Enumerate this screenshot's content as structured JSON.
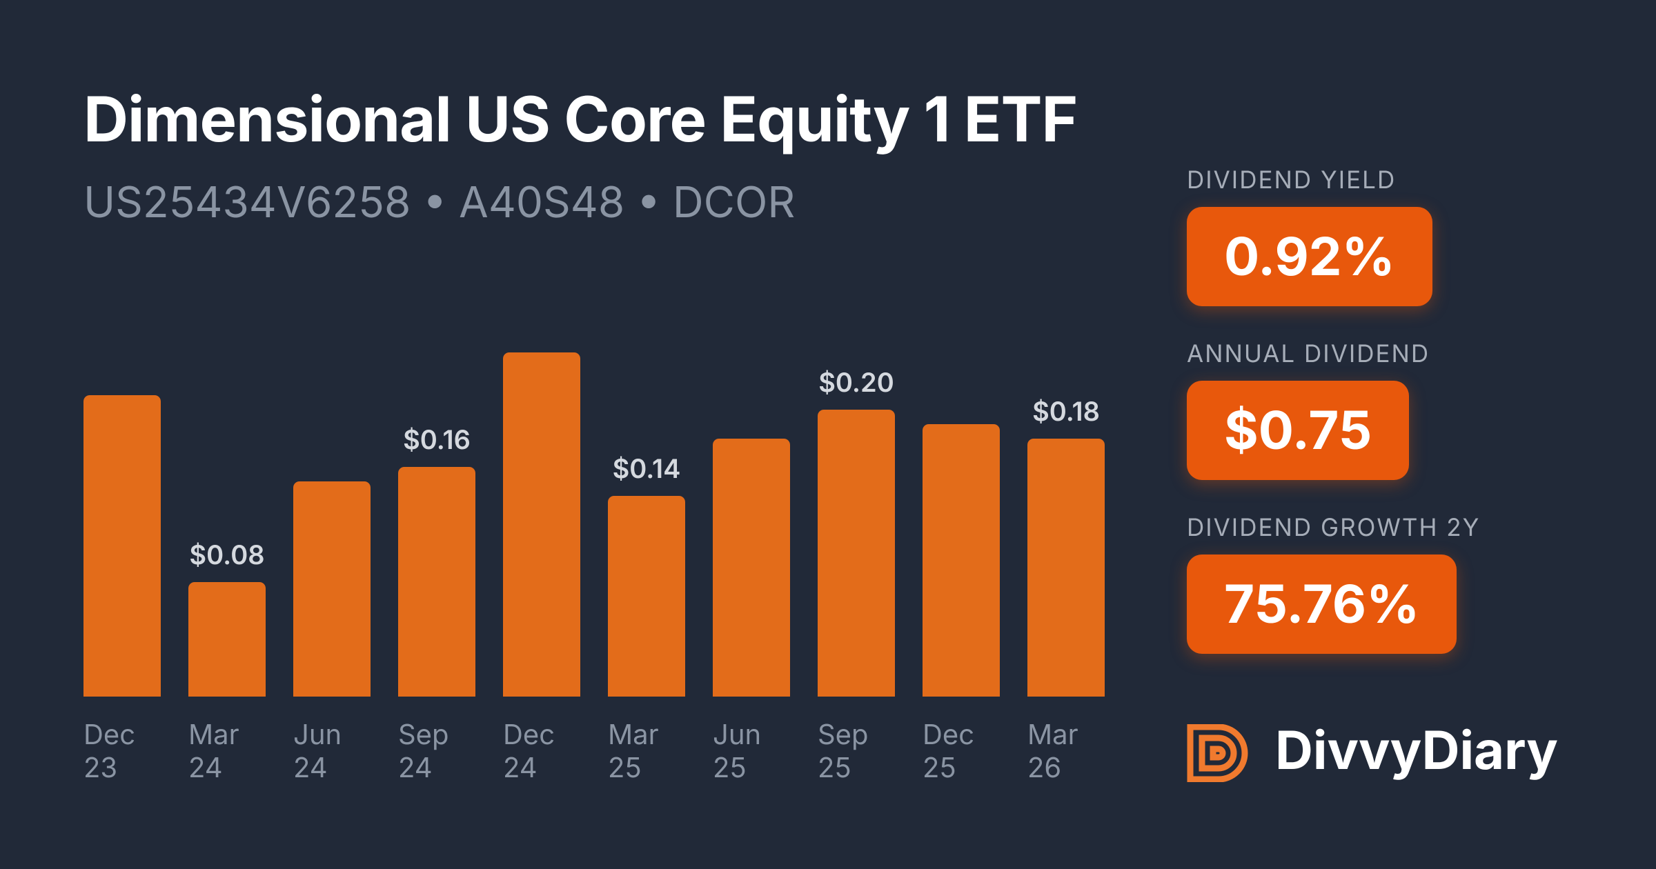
{
  "chart_data": {
    "type": "bar",
    "title": "Dimensional US Core Equity 1 ETF",
    "subtitle": "US25434V6258 • A40S48 • DCOR",
    "categories": [
      "Dec 23",
      "Mar 24",
      "Jun 24",
      "Sep 24",
      "Dec 24",
      "Mar 25",
      "Jun 25",
      "Sep 25",
      "Dec 25",
      "Mar 26"
    ],
    "values": [
      0.21,
      0.08,
      0.15,
      0.16,
      0.24,
      0.14,
      0.18,
      0.2,
      0.19,
      0.18
    ],
    "value_labels": [
      null,
      "$0.08",
      null,
      "$0.16",
      null,
      "$0.14",
      null,
      "$0.20",
      null,
      "$0.18"
    ],
    "color": "#e36c1a",
    "ylim": [
      0,
      0.25
    ]
  },
  "stats": [
    {
      "label": "DIVIDEND YIELD",
      "value": "0.92%"
    },
    {
      "label": "ANNUAL DIVIDEND",
      "value": "$0.75"
    },
    {
      "label": "DIVIDEND GROWTH 2Y",
      "value": "75.76%"
    }
  ],
  "brand": "DivvyDiary"
}
